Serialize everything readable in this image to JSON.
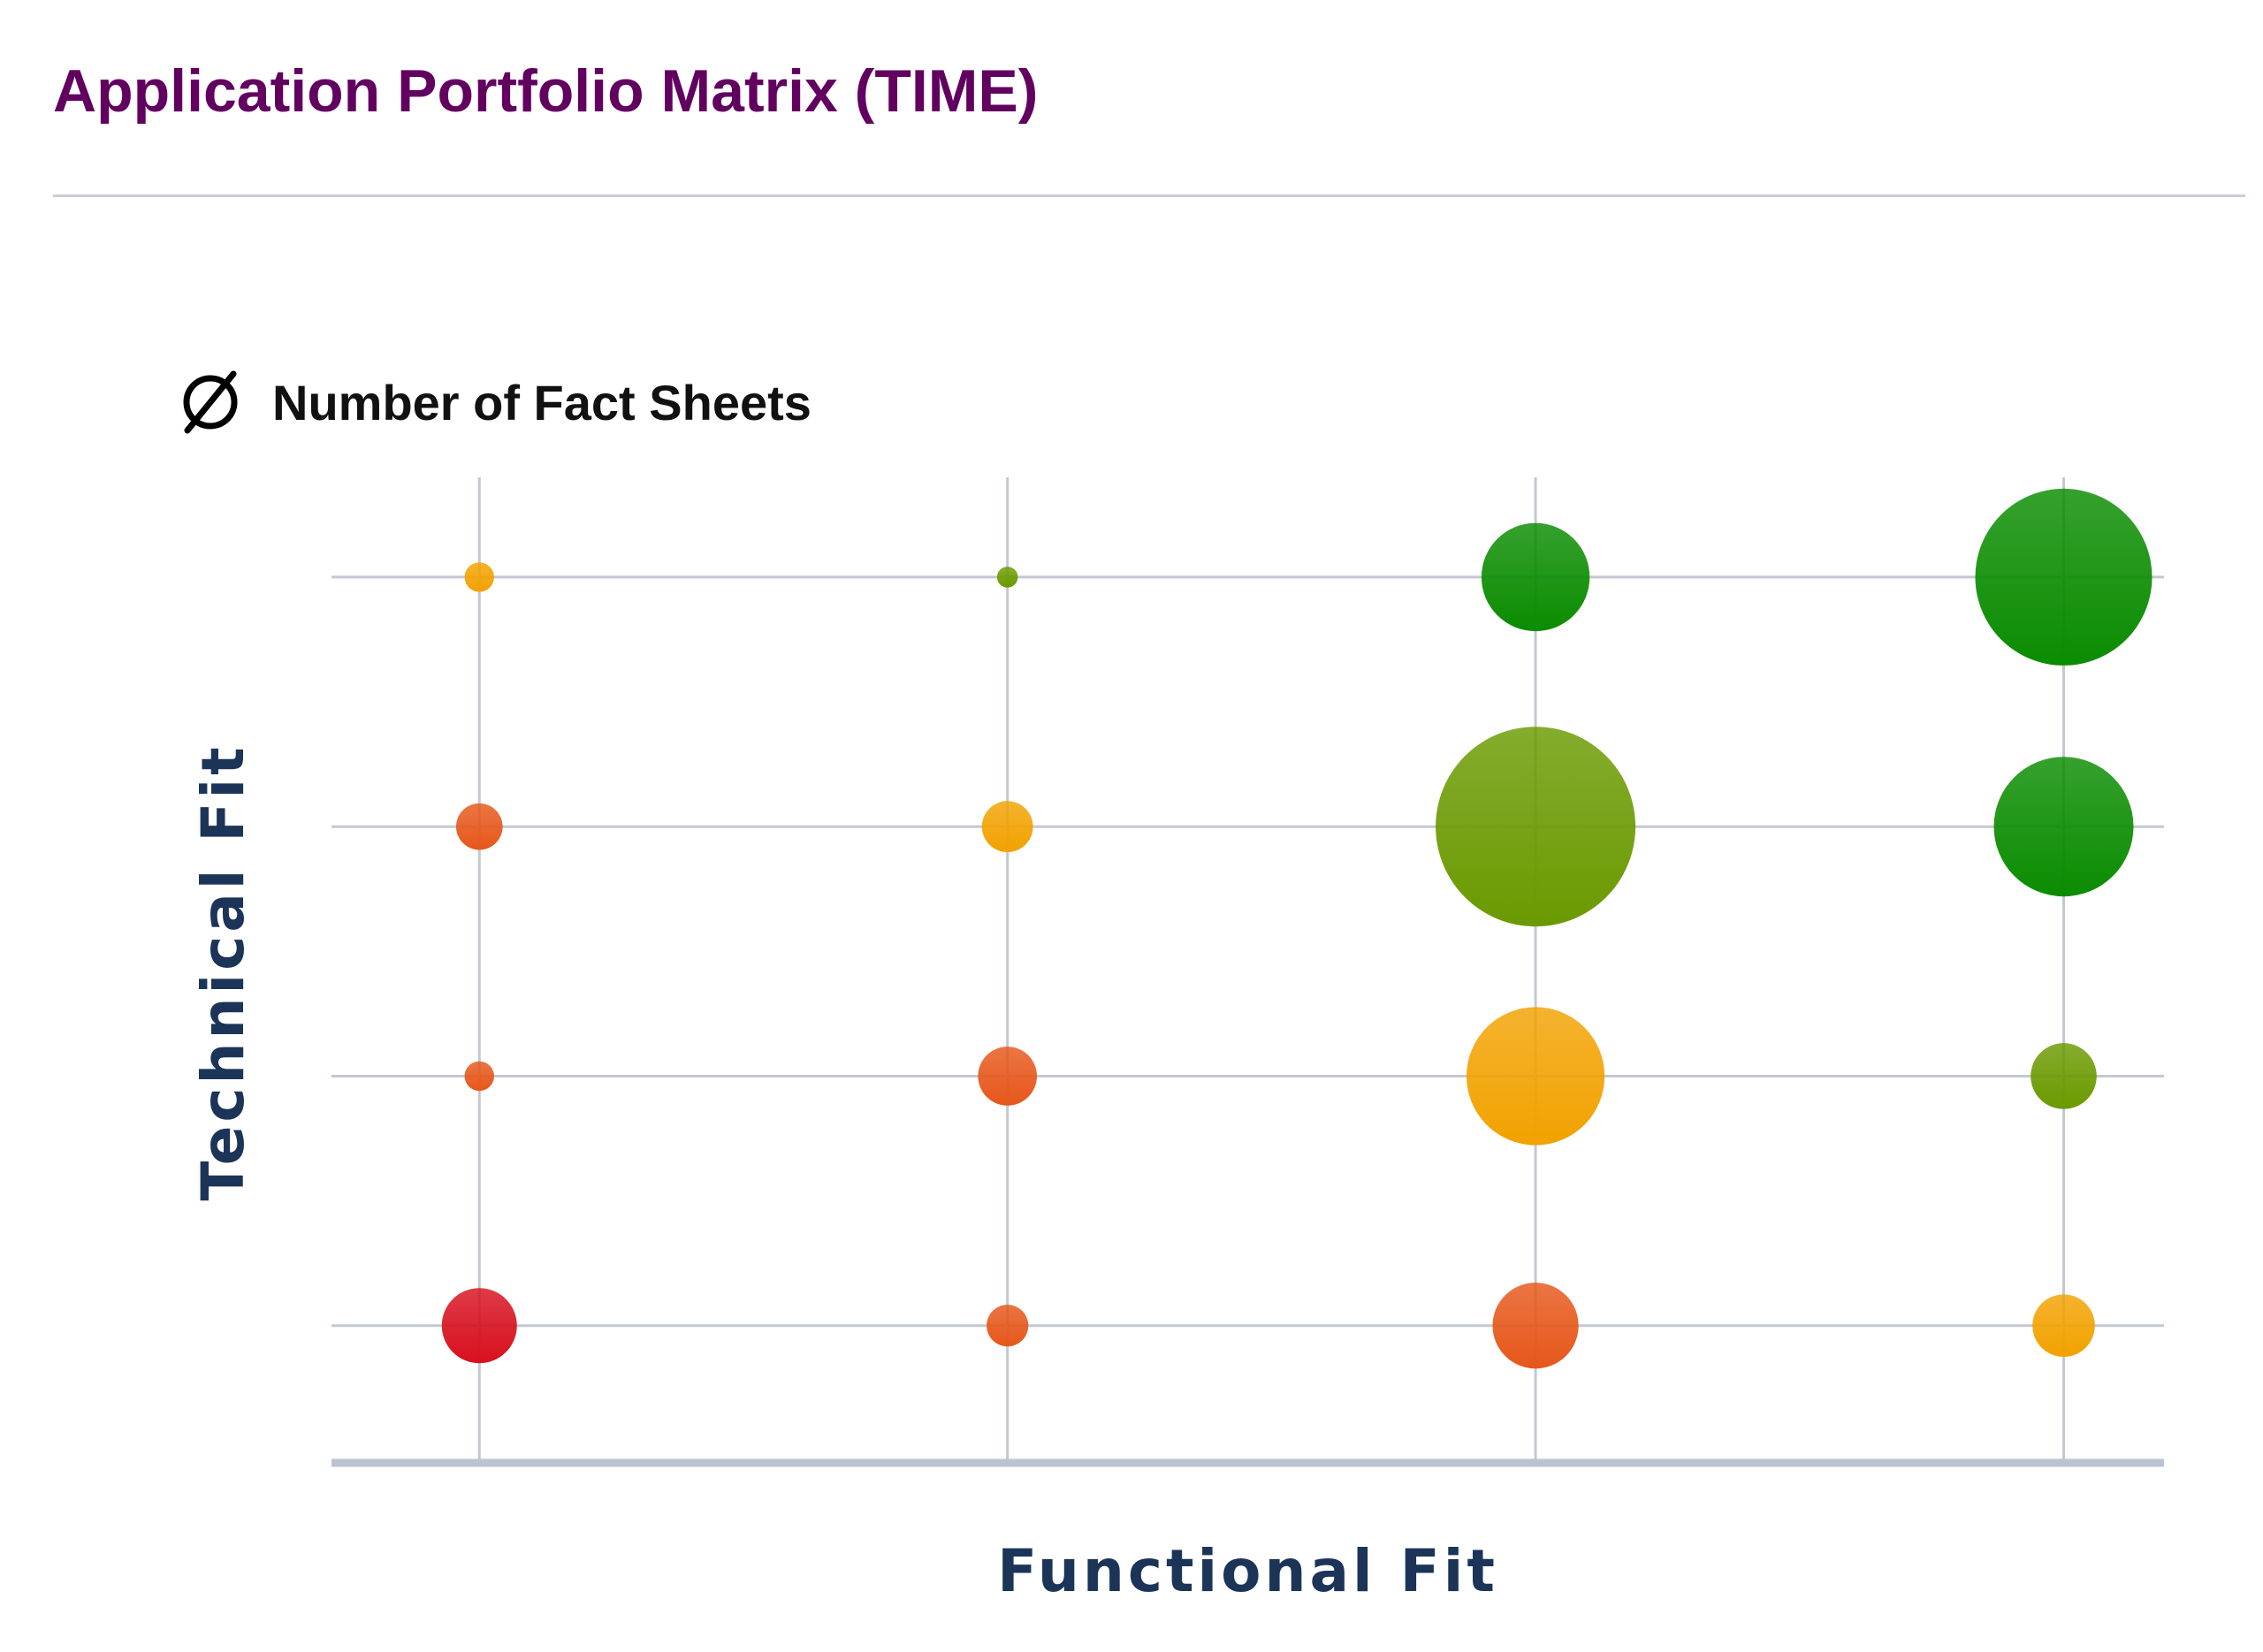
{
  "title": "Application Portfolio Matrix (TIME)",
  "legend": {
    "icon": "empty-set-icon",
    "label": "Number of Fact Sheets"
  },
  "chart_data": {
    "type": "scatter",
    "subtype": "bubble",
    "xlabel": "Functional Fit",
    "ylabel": "Technical Fit",
    "xlim": [
      0.72,
      4.19
    ],
    "ylim": [
      0.45,
      4.4
    ],
    "x_categories": [
      1,
      2,
      3,
      4
    ],
    "y_categories": [
      1,
      2,
      3,
      4
    ],
    "grid": true,
    "tick_labels_shown": false,
    "bubble_size_meaning": "Number of Fact Sheets",
    "colors": {
      "red": "#d8101e",
      "orange_red": "#e6571a",
      "orange": "#f2a200",
      "olive": "#6a9a00",
      "green": "#0a8c00"
    },
    "points": [
      {
        "x": 1,
        "y": 4,
        "size": 2,
        "color": "orange"
      },
      {
        "x": 2,
        "y": 4,
        "size": 1,
        "color": "olive"
      },
      {
        "x": 3,
        "y": 4,
        "size": 27,
        "color": "green"
      },
      {
        "x": 4,
        "y": 4,
        "size": 72,
        "color": "green"
      },
      {
        "x": 1,
        "y": 3,
        "size": 5,
        "color": "orange_red"
      },
      {
        "x": 2,
        "y": 3,
        "size": 6,
        "color": "orange"
      },
      {
        "x": 3,
        "y": 3,
        "size": 92,
        "color": "olive"
      },
      {
        "x": 4,
        "y": 3,
        "size": 45,
        "color": "green"
      },
      {
        "x": 1,
        "y": 2,
        "size": 2,
        "color": "orange_red"
      },
      {
        "x": 2,
        "y": 2,
        "size": 8,
        "color": "orange_red"
      },
      {
        "x": 3,
        "y": 2,
        "size": 44,
        "color": "orange"
      },
      {
        "x": 4,
        "y": 2,
        "size": 10,
        "color": "olive"
      },
      {
        "x": 1,
        "y": 1,
        "size": 13,
        "color": "red"
      },
      {
        "x": 2,
        "y": 1,
        "size": 4,
        "color": "orange_red"
      },
      {
        "x": 3,
        "y": 1,
        "size": 17,
        "color": "orange_red"
      },
      {
        "x": 4,
        "y": 1,
        "size": 9,
        "color": "orange"
      }
    ]
  }
}
